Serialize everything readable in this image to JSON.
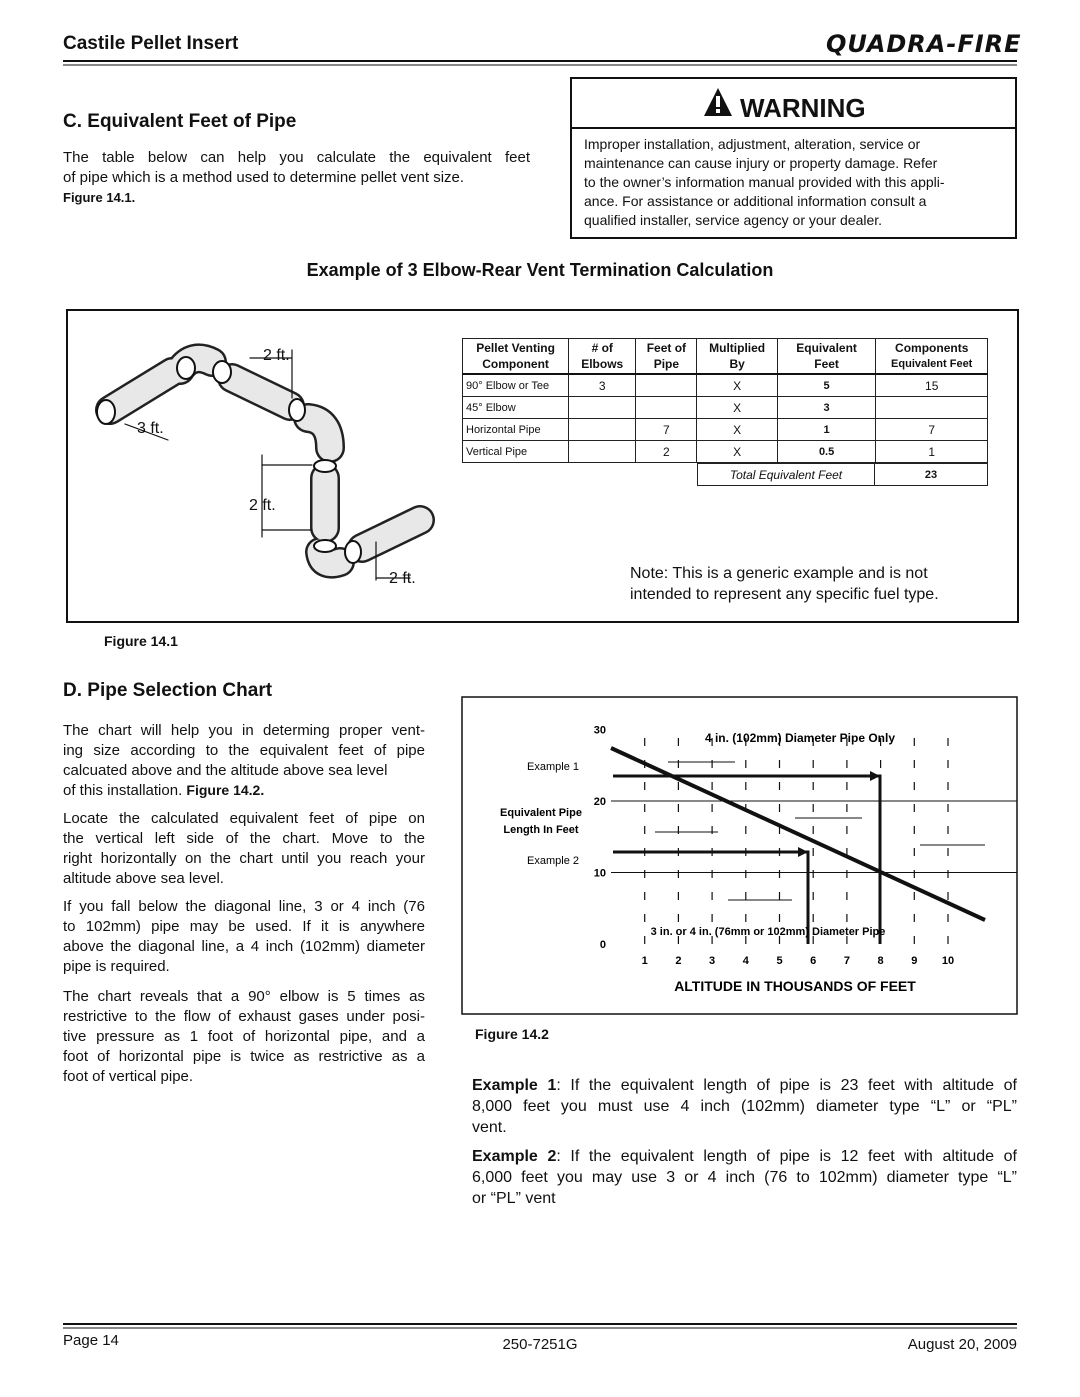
{
  "header": {
    "title": "Castile Pellet Insert",
    "logo": "Quadra-Fire"
  },
  "section_c": {
    "heading": "C.  Equivalent Feet of Pipe",
    "lines": [
      "The table below can help you calculate the equivalent feet",
      "of pipe which is a method used to determine pellet vent size."
    ],
    "figure_ref": "Figure 14.1."
  },
  "warning": {
    "title": "WARNING",
    "lines": [
      "Improper installation, adjustment, alteration, service or",
      "maintenance can cause injury or property damage. Refer",
      "to the owner’s information manual provided with this appli-",
      "ance. For assistance or additional information consult a",
      "qualified installer, service agency or your dealer."
    ]
  },
  "figure_14_1": {
    "heading": "Example of 3 Elbow-Rear Vent Termination Calculation",
    "diagram_labels": [
      "2 ft.",
      "3 ft.",
      "2 ft.",
      "2 ft."
    ],
    "table": {
      "header": [
        [
          "Pellet Venting",
          "Component"
        ],
        [
          "# of",
          "Elbows"
        ],
        [
          "Feet of",
          "Pipe"
        ],
        [
          "Multiplied",
          "By"
        ],
        [
          "Equivalent",
          "Feet"
        ],
        [
          "Components",
          "Equivalent Feet"
        ]
      ],
      "rows": [
        [
          "90° Elbow or Tee",
          3,
          null,
          "X",
          5,
          15
        ],
        [
          "45° Elbow",
          null,
          null,
          "X",
          3,
          null
        ],
        [
          "Horizontal Pipe",
          null,
          7,
          "X",
          1,
          7
        ],
        [
          "Vertical Pipe",
          null,
          2,
          "X",
          0.5,
          1
        ]
      ],
      "total_label": "Total Equivalent Feet",
      "total": 23
    },
    "note": [
      "Note:  This is a generic example and is not",
      "intended to represent any specific fuel type."
    ],
    "caption": "Figure 14.1"
  },
  "section_d": {
    "heading": "D.  Pipe Selection Chart",
    "p1": {
      "lines": [
        "The chart will help you in determing proper vent-",
        "ing size according to the equivalent feet of pipe",
        "calcuated above and the altitude above sea level"
      ],
      "last": "of this installation.",
      "figure_ref": "Figure 14.2."
    },
    "p2": [
      "Locate the calculated equivalent feet of pipe on",
      "the vertical left side of the chart.  Move to the",
      "right horizontally on the chart until you reach your",
      "altitude above sea level."
    ],
    "p3": [
      "If you fall below the diagonal line, 3 or 4 inch (76",
      "to 102mm) pipe may be used.  If it is anywhere",
      "above the diagonal line, a 4 inch (102mm) diameter",
      "pipe is required."
    ],
    "p4": [
      "The chart reveals that a 90° elbow is 5 times as",
      "restrictive to the flow of exhaust gases under posi-",
      "tive pressure as 1 foot of horizontal pipe, and a",
      "foot of horizontal pipe is twice as restrictive as a",
      "foot of vertical pipe."
    ]
  },
  "figure_14_2": {
    "upper_label": "4 in. (102mm) Diameter Pipe Only",
    "lower_label": "3 in. or 4 in. (76mm or 102mm) Diameter Pipe",
    "y_label": [
      "Equivalent Pipe",
      "Length In Feet"
    ],
    "example_labels": [
      "Example 1",
      "Example 2"
    ],
    "yticks": [
      0,
      10,
      20,
      30
    ],
    "xticks": [
      1,
      2,
      3,
      4,
      5,
      6,
      7,
      8,
      9,
      10
    ],
    "x_label": "ALTITUDE IN THOUSANDS OF FEET",
    "caption": "Figure 14.2"
  },
  "examples": [
    {
      "label": "Example 1",
      "lines": [
        ":  If the equivalent length of pipe is 23 feet with altitude of",
        "8,000 feet you must use 4 inch (102mm) diameter type “L” or “PL”",
        "vent."
      ]
    },
    {
      "label": "Example 2",
      "lines": [
        ":  If the equivalent length of pipe is 12 feet with altitude of",
        "6,000 feet you may use 3 or 4 inch (76 to 102mm) diameter type “L”",
        "or “PL” vent"
      ]
    }
  ],
  "footer": {
    "page": "Page  14",
    "doc_number": "250-7251G",
    "date": "August 20, 2009"
  }
}
